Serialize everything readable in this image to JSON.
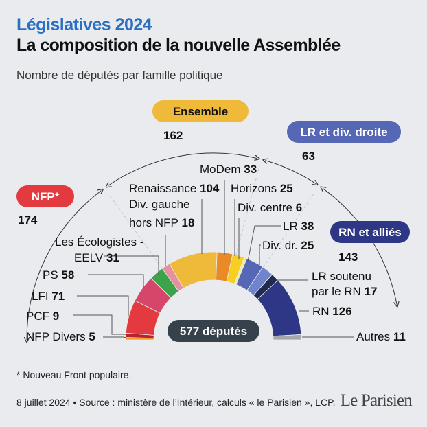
{
  "header": {
    "kicker": "Législatives 2024",
    "title": "La composition de la nouvelle Assemblée",
    "subtitle": "Nombre de députés par famille politique"
  },
  "footer": {
    "footnote": "* Nouveau Front populaire.",
    "source": "8 juillet 2024 • Source : ministère de l’Intérieur, calculs « le Parisien », LCP.",
    "logo": "Le Parisien"
  },
  "colors": {
    "nfp": "#e23a3f",
    "ensemble": "#efb93a",
    "lr": "#5567b5",
    "rn": "#2e3686",
    "center": "#37414b"
  },
  "chart_data": {
    "type": "pie",
    "variant": "hemicycle",
    "total": 577,
    "total_label": "577 députés",
    "groups": [
      {
        "label": "NFP*",
        "value": 174,
        "color": "#e23a3f"
      },
      {
        "label": "Ensemble",
        "value": 162,
        "color": "#efb93a"
      },
      {
        "label": "LR et div. droite",
        "value": 63,
        "color": "#5567b5"
      },
      {
        "label": "RN et alliés",
        "value": 143,
        "color": "#2e3686"
      }
    ],
    "parties": [
      {
        "name": "NFP Divers",
        "value": 5,
        "color": "#ef9a33"
      },
      {
        "name": "PCF",
        "value": 9,
        "color": "#b8232b"
      },
      {
        "name": "LFI",
        "value": 71,
        "color": "#e23a3f"
      },
      {
        "name": "PS",
        "value": 58,
        "color": "#d6466b"
      },
      {
        "name": "Les Écologistes - EELV",
        "value": 31,
        "color": "#3ba34a"
      },
      {
        "name": "Div. gauche hors NFP",
        "value": 18,
        "color": "#e5909f"
      },
      {
        "name": "Renaissance",
        "value": 104,
        "color": "#efb93a"
      },
      {
        "name": "MoDem",
        "value": 33,
        "color": "#e98a27"
      },
      {
        "name": "Horizons",
        "value": 25,
        "color": "#f5d023"
      },
      {
        "name": "Div. centre",
        "value": 6,
        "color": "#f4ea9c"
      },
      {
        "name": "LR",
        "value": 38,
        "color": "#5567b5"
      },
      {
        "name": "Div. dr.",
        "value": 25,
        "color": "#6f84cc"
      },
      {
        "name": "LR soutenu par le RN",
        "value": 17,
        "color": "#232a52"
      },
      {
        "name": "RN",
        "value": 126,
        "color": "#2e3686"
      },
      {
        "name": "Autres",
        "value": 11,
        "color": "#a3a6ab"
      }
    ],
    "label_lines": [
      [
        "NFP Divers"
      ],
      [
        "PCF"
      ],
      [
        "LFI"
      ],
      [
        "PS"
      ],
      [
        "Les Écologistes -",
        "EELV"
      ],
      [
        "Div. gauche",
        "hors NFP"
      ],
      [
        "Renaissance"
      ],
      [
        "MoDem"
      ],
      [
        "Horizons"
      ],
      [
        "Div. centre"
      ],
      [
        "LR"
      ],
      [
        "Div. dr."
      ],
      [
        "LR soutenu",
        "par le RN"
      ],
      [
        "RN"
      ],
      [
        "Autres"
      ]
    ]
  }
}
